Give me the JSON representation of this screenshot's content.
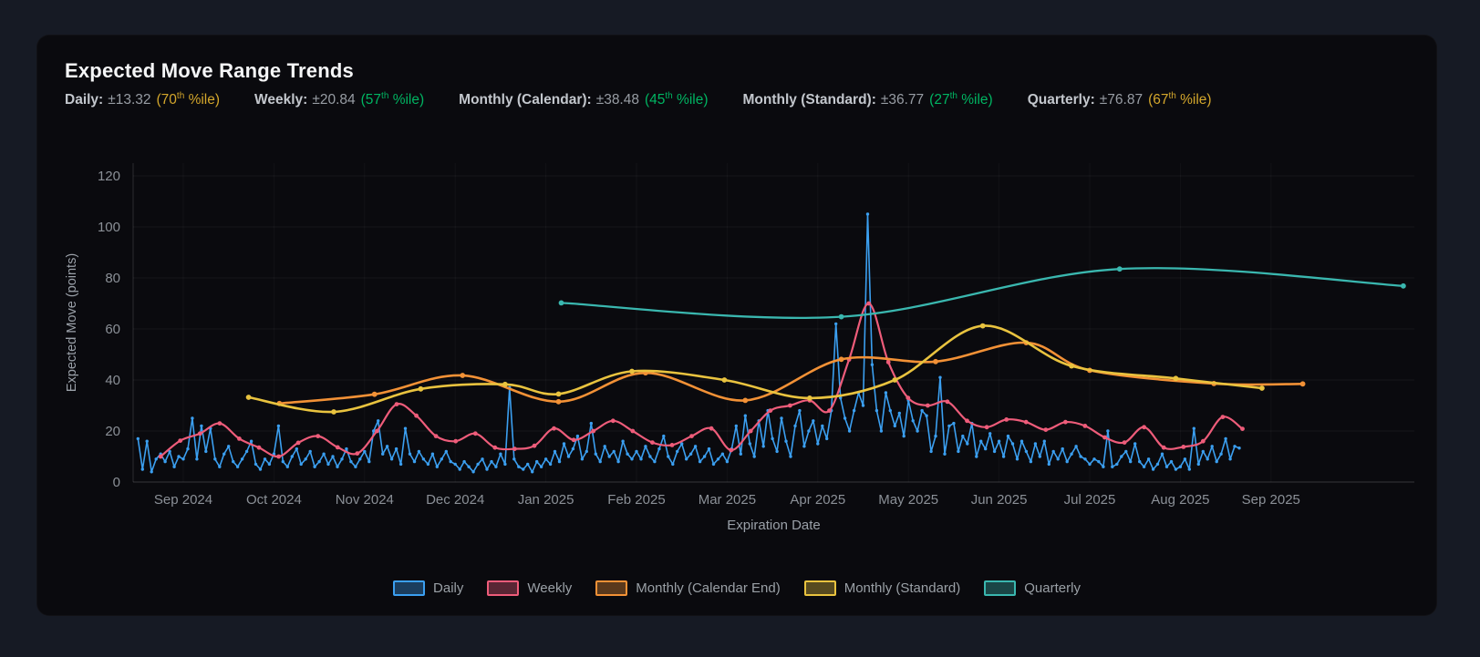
{
  "header": {
    "title": "Expected Move Range Trends",
    "pct_superscript": "th",
    "pct_close": " %ile)",
    "stats": [
      {
        "label": "Daily:",
        "value": "±13.32",
        "pct": "(70",
        "pct_color": "gold"
      },
      {
        "label": "Weekly:",
        "value": "±20.84",
        "pct": "(57",
        "pct_color": "green"
      },
      {
        "label": "Monthly (Calendar):",
        "value": "±38.48",
        "pct": "(45",
        "pct_color": "green"
      },
      {
        "label": "Monthly (Standard):",
        "value": "±36.77",
        "pct": "(27",
        "pct_color": "green"
      },
      {
        "label": "Quarterly:",
        "value": "±76.87",
        "pct": "(67",
        "pct_color": "gold"
      }
    ]
  },
  "colors": {
    "gold": "#d4a72c",
    "green": "#00b562",
    "axis_text": "#8b9097",
    "grid": "rgba(255,255,255,0.055)",
    "grid_v": "rgba(255,255,255,0.035)",
    "axis_line": "rgba(255,255,255,0.14)"
  },
  "chart_data": {
    "type": "line",
    "xlabel": "Expiration Date",
    "ylabel": "Expected Move (points)",
    "x_unit": "months since 2024-09-01 (t=0 is Sep 2024 tick)",
    "ylim": [
      0,
      120
    ],
    "y_ticks": [
      0,
      20,
      40,
      60,
      80,
      100,
      120
    ],
    "x_ticks": [
      0,
      1,
      2,
      3,
      4,
      5,
      6,
      7,
      8,
      9,
      10,
      11,
      12
    ],
    "x_ticklabels": [
      "Sep 2024",
      "Oct 2024",
      "Nov 2024",
      "Dec 2024",
      "Jan 2025",
      "Feb 2025",
      "Mar 2025",
      "Apr 2025",
      "May 2025",
      "Jun 2025",
      "Jul 2025",
      "Aug 2025",
      "Sep 2025"
    ],
    "grid": true,
    "legend_position": "bottom",
    "series": [
      {
        "name": "Daily",
        "color": "#3b9ff0",
        "style": "jagged",
        "width": 1.6,
        "marker_r": 1.7,
        "t0": -0.5,
        "dt": 0.05,
        "values": [
          17,
          5,
          16,
          4,
          9,
          11,
          8,
          12,
          6,
          10,
          9,
          13,
          25,
          9,
          22,
          12,
          21,
          9,
          6,
          11,
          14,
          8,
          6,
          9,
          12,
          16,
          7,
          5,
          9,
          7,
          11,
          22,
          8,
          6,
          10,
          13,
          7,
          9,
          12,
          6,
          8,
          11,
          7,
          10,
          6,
          9,
          13,
          8,
          6,
          9,
          12,
          8,
          20,
          24,
          11,
          14,
          9,
          13,
          7,
          21,
          11,
          8,
          12,
          9,
          7,
          11,
          6,
          9,
          12,
          8,
          7,
          5,
          8,
          6,
          4,
          7,
          9,
          5,
          8,
          6,
          11,
          7,
          37,
          9,
          6,
          5,
          7,
          4,
          8,
          6,
          9,
          7,
          12,
          8,
          15,
          10,
          13,
          18,
          9,
          12,
          23,
          11,
          8,
          14,
          10,
          12,
          8,
          16,
          11,
          9,
          12,
          9,
          14,
          10,
          8,
          13,
          18,
          10,
          7,
          12,
          15,
          9,
          11,
          14,
          8,
          10,
          13,
          7,
          9,
          11,
          8,
          13,
          22,
          11,
          26,
          15,
          10,
          24,
          14,
          28,
          17,
          12,
          25,
          16,
          10,
          22,
          28,
          14,
          20,
          24,
          15,
          22,
          17,
          28,
          62,
          33,
          25,
          20,
          28,
          35,
          30,
          105,
          46,
          28,
          20,
          35,
          28,
          22,
          27,
          18,
          32,
          24,
          20,
          28,
          26,
          12,
          18,
          41,
          11,
          22,
          23,
          12,
          18,
          15,
          23,
          10,
          16,
          13,
          19,
          12,
          16,
          10,
          18,
          15,
          9,
          16,
          12,
          8,
          15,
          10,
          16,
          7,
          12,
          9,
          13,
          8,
          11,
          14,
          10,
          9,
          7,
          9,
          8,
          6,
          20,
          6,
          7,
          10,
          12,
          8,
          15,
          8,
          6,
          9,
          5,
          7,
          11,
          6,
          8,
          5,
          6,
          9,
          5,
          21,
          7,
          12,
          9,
          14,
          8,
          11,
          17,
          9,
          14,
          13.32
        ]
      },
      {
        "name": "Weekly",
        "color": "#ee5c7a",
        "style": "smooth",
        "width": 2.2,
        "marker_r": 2.4,
        "t0": -0.25,
        "dt": 0.217,
        "values": [
          10,
          16.2,
          19,
          23,
          17,
          13.5,
          10,
          15.4,
          18,
          13.6,
          11.2,
          20,
          30.5,
          26,
          18,
          16,
          19,
          13.5,
          13,
          14.2,
          21,
          16.5,
          20,
          24,
          20,
          15.5,
          14.5,
          18,
          21,
          12.5,
          20,
          28,
          30,
          32,
          28,
          48,
          70,
          47,
          33,
          30,
          31.5,
          24,
          21.5,
          24.5,
          23.5,
          20.5,
          23.5,
          22,
          17.5,
          15.5,
          21.5,
          13.5,
          13.8,
          16,
          25.5,
          20.84
        ]
      },
      {
        "name": "Monthly (Calendar End)",
        "color": "#f29136",
        "style": "smooth",
        "width": 2.6,
        "marker_r": 2.9,
        "points": [
          [
            1.06,
            30.8
          ],
          [
            2.11,
            34.4
          ],
          [
            3.08,
            41.8
          ],
          [
            4.14,
            31.5
          ],
          [
            5.1,
            42.8
          ],
          [
            6.2,
            32.0
          ],
          [
            7.26,
            48.1
          ],
          [
            8.3,
            47.2
          ],
          [
            9.3,
            54.6
          ],
          [
            10.0,
            43.8
          ],
          [
            11.37,
            38.6
          ],
          [
            12.35,
            38.48
          ]
        ]
      },
      {
        "name": "Monthly (Standard)",
        "color": "#e9c33f",
        "style": "smooth",
        "width": 2.6,
        "marker_r": 2.9,
        "points": [
          [
            0.72,
            33.2
          ],
          [
            1.66,
            27.5
          ],
          [
            2.62,
            36.5
          ],
          [
            3.55,
            38.3
          ],
          [
            4.14,
            34.5
          ],
          [
            4.95,
            43.4
          ],
          [
            5.97,
            40.0
          ],
          [
            6.91,
            32.9
          ],
          [
            7.85,
            40.0
          ],
          [
            8.82,
            61.2
          ],
          [
            9.8,
            45.5
          ],
          [
            10.95,
            40.6
          ],
          [
            11.9,
            36.77
          ]
        ]
      },
      {
        "name": "Quarterly",
        "color": "#3ab7af",
        "style": "smooth",
        "width": 2.3,
        "marker_r": 2.9,
        "points": [
          [
            4.17,
            70.2
          ],
          [
            7.26,
            64.8
          ],
          [
            10.33,
            83.5
          ],
          [
            13.46,
            76.87
          ]
        ]
      }
    ]
  }
}
